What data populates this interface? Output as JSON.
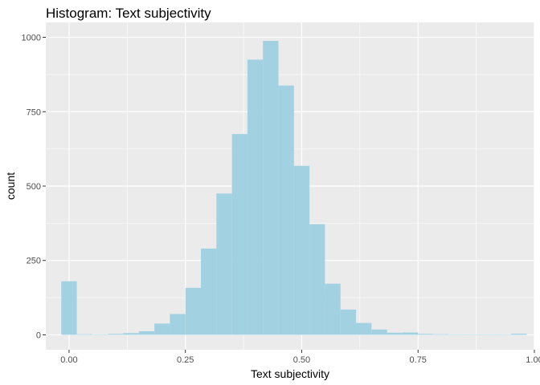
{
  "chart_data": {
    "type": "bar",
    "subtype": "histogram",
    "title": "Histogram: Text subjectivity",
    "xlabel": "Text subjectivity",
    "ylabel": "count",
    "xlim": [
      -0.05,
      1.0
    ],
    "ylim": [
      -50,
      1050
    ],
    "bin_width": 0.0333,
    "x_ticks": [
      0.0,
      0.25,
      0.5,
      0.75,
      1.0
    ],
    "x_tick_labels": [
      "0.00",
      "0.25",
      "0.50",
      "0.75",
      "1.00"
    ],
    "y_ticks": [
      0,
      250,
      500,
      750,
      1000
    ],
    "y_tick_labels": [
      "0",
      "250",
      "500",
      "750",
      "1000"
    ],
    "grid": true,
    "fill_color": "#a2d2e2",
    "panel_color": "#ebebeb",
    "grid_color": "#ffffff",
    "bins": [
      {
        "center": 0.0,
        "count": 180
      },
      {
        "center": 0.0333,
        "count": 2
      },
      {
        "center": 0.0667,
        "count": 1
      },
      {
        "center": 0.1,
        "count": 3
      },
      {
        "center": 0.1333,
        "count": 6
      },
      {
        "center": 0.1667,
        "count": 12
      },
      {
        "center": 0.2,
        "count": 38
      },
      {
        "center": 0.2333,
        "count": 70
      },
      {
        "center": 0.2667,
        "count": 158
      },
      {
        "center": 0.3,
        "count": 290
      },
      {
        "center": 0.3333,
        "count": 475
      },
      {
        "center": 0.3667,
        "count": 675
      },
      {
        "center": 0.4,
        "count": 925
      },
      {
        "center": 0.4333,
        "count": 988
      },
      {
        "center": 0.4667,
        "count": 838
      },
      {
        "center": 0.5,
        "count": 568
      },
      {
        "center": 0.5333,
        "count": 372
      },
      {
        "center": 0.5667,
        "count": 172
      },
      {
        "center": 0.6,
        "count": 85
      },
      {
        "center": 0.6333,
        "count": 40
      },
      {
        "center": 0.6667,
        "count": 18
      },
      {
        "center": 0.7,
        "count": 7
      },
      {
        "center": 0.7333,
        "count": 8
      },
      {
        "center": 0.7667,
        "count": 3
      },
      {
        "center": 0.8,
        "count": 2
      },
      {
        "center": 0.8333,
        "count": 1
      },
      {
        "center": 0.8667,
        "count": 1
      },
      {
        "center": 0.9,
        "count": 0
      },
      {
        "center": 0.9333,
        "count": 0
      },
      {
        "center": 0.9667,
        "count": 4
      }
    ]
  }
}
